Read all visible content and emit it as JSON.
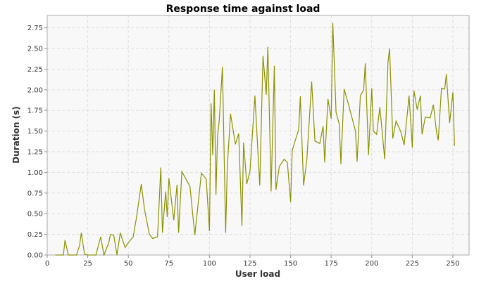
{
  "chart_data": {
    "type": "line",
    "title": "Response time against load",
    "xlabel": "User load",
    "ylabel": "Duration (s)",
    "xlim": [
      0,
      260
    ],
    "ylim": [
      0,
      2.9
    ],
    "x_ticks": [
      0,
      25,
      50,
      75,
      100,
      125,
      150,
      175,
      200,
      225,
      250
    ],
    "x_tick_labels": [
      "0",
      "25",
      "50",
      "75",
      "100",
      "125",
      "150",
      "175",
      "200",
      "225",
      "250"
    ],
    "y_ticks": [
      0,
      0.25,
      0.5,
      0.75,
      1.0,
      1.25,
      1.5,
      1.75,
      2.0,
      2.25,
      2.5,
      2.75
    ],
    "y_tick_labels": [
      "0.00",
      "0.25",
      "0.50",
      "0.75",
      "1.00",
      "1.25",
      "1.50",
      "1.75",
      "2.00",
      "2.25",
      "2.50",
      "2.75"
    ],
    "grid": true,
    "plot_background": "#f8f8f8",
    "line_color": "#8c9100",
    "series": [
      {
        "x": [
          5,
          8,
          10,
          11,
          13,
          15,
          18,
          20,
          21,
          23,
          25,
          28,
          30,
          33,
          35,
          38,
          39,
          41,
          43,
          45,
          48,
          50,
          53,
          55,
          58,
          60,
          63,
          65,
          68,
          70,
          71,
          73,
          74,
          75,
          78,
          80,
          81,
          83,
          88,
          91,
          95,
          98,
          100,
          101,
          102,
          103,
          104,
          105,
          106,
          108,
          110,
          111,
          113,
          116,
          118,
          120,
          121,
          123,
          125,
          128,
          131,
          133,
          135,
          136,
          138,
          140,
          141,
          143,
          146,
          148,
          150,
          151,
          155,
          156,
          158,
          160,
          163,
          165,
          168,
          170,
          171,
          173,
          175,
          176,
          178,
          180,
          181,
          183,
          186,
          190,
          191,
          193,
          195,
          196,
          198,
          200,
          201,
          203,
          205,
          208,
          210,
          211,
          213,
          215,
          218,
          220,
          223,
          225,
          226,
          228,
          230,
          231,
          233,
          236,
          238,
          240,
          241,
          243,
          245,
          246,
          248,
          250,
          251
        ],
        "y": [
          0.0,
          0.0,
          0.0,
          0.18,
          0.0,
          0.0,
          0.0,
          0.12,
          0.27,
          0.01,
          0.0,
          0.0,
          0.0,
          0.22,
          0.0,
          0.15,
          0.25,
          0.24,
          0.0,
          0.27,
          0.09,
          0.15,
          0.22,
          0.45,
          0.86,
          0.55,
          0.25,
          0.2,
          0.22,
          1.06,
          0.27,
          0.77,
          0.46,
          0.93,
          0.42,
          0.85,
          0.27,
          1.01,
          0.83,
          0.24,
          0.99,
          0.92,
          0.29,
          1.84,
          1.21,
          2.0,
          0.73,
          1.45,
          1.62,
          2.28,
          0.27,
          1.06,
          1.71,
          1.34,
          1.47,
          0.35,
          1.36,
          0.86,
          1.02,
          1.93,
          0.84,
          2.41,
          1.94,
          2.52,
          0.77,
          2.29,
          0.79,
          1.07,
          1.16,
          1.12,
          0.64,
          1.27,
          1.52,
          1.92,
          0.84,
          1.15,
          2.1,
          1.38,
          1.35,
          1.56,
          1.12,
          1.89,
          1.65,
          2.81,
          1.73,
          1.58,
          1.1,
          2.01,
          1.8,
          1.5,
          1.13,
          1.93,
          2.0,
          2.32,
          1.21,
          2.02,
          1.5,
          1.46,
          1.79,
          1.16,
          2.33,
          2.5,
          1.41,
          1.62,
          1.49,
          1.33,
          1.93,
          1.3,
          1.99,
          1.76,
          1.93,
          1.46,
          1.67,
          1.66,
          1.82,
          1.48,
          1.39,
          2.02,
          2.01,
          2.19,
          1.6,
          1.97,
          1.32
        ]
      }
    ]
  }
}
